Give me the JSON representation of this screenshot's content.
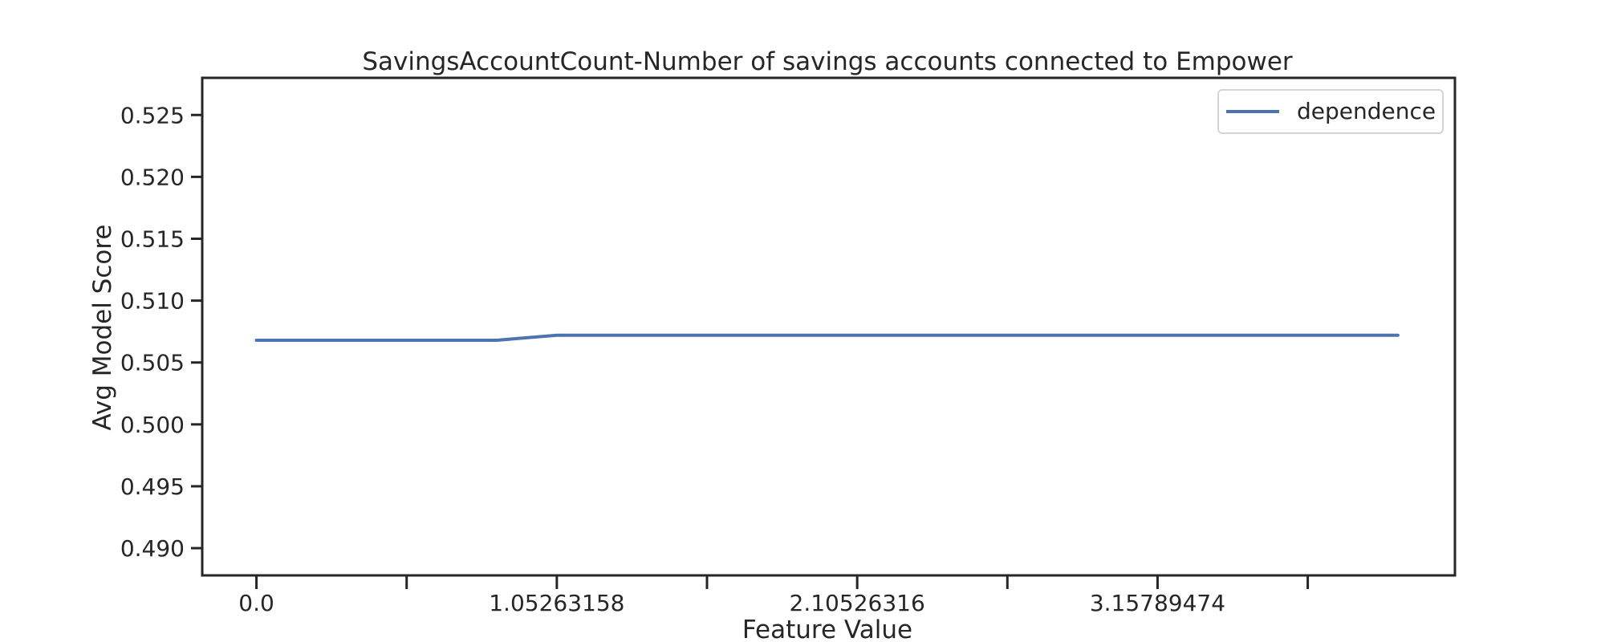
{
  "chart_data": {
    "type": "line",
    "title": "SavingsAccountCount-Number of savings accounts connected to Empower",
    "xlabel": "Feature Value",
    "ylabel": "Avg Model Score",
    "xlim": [
      -0.19,
      4.2
    ],
    "ylim": [
      0.4878,
      0.528
    ],
    "x_ticks": [
      0,
      0.526315789,
      1.05263158,
      1.578947368,
      2.10526316,
      2.631578947,
      3.15789474,
      3.684210526
    ],
    "x_tick_labels": [
      "0.0",
      "",
      "1.05263158",
      "",
      "2.10526316",
      "",
      "3.15789474",
      ""
    ],
    "y_ticks": [
      0.49,
      0.495,
      0.5,
      0.505,
      0.51,
      0.515,
      0.52,
      0.525
    ],
    "y_tick_labels": [
      "0.490",
      "0.495",
      "0.500",
      "0.505",
      "0.510",
      "0.515",
      "0.520",
      "0.525"
    ],
    "grid": false,
    "legend_position": "top-right",
    "series": [
      {
        "name": "dependence",
        "color": "#4c72b0",
        "x": [
          0,
          0.842,
          1.05263158,
          4.0
        ],
        "y": [
          0.5068,
          0.5068,
          0.5072,
          0.5072
        ]
      }
    ]
  }
}
